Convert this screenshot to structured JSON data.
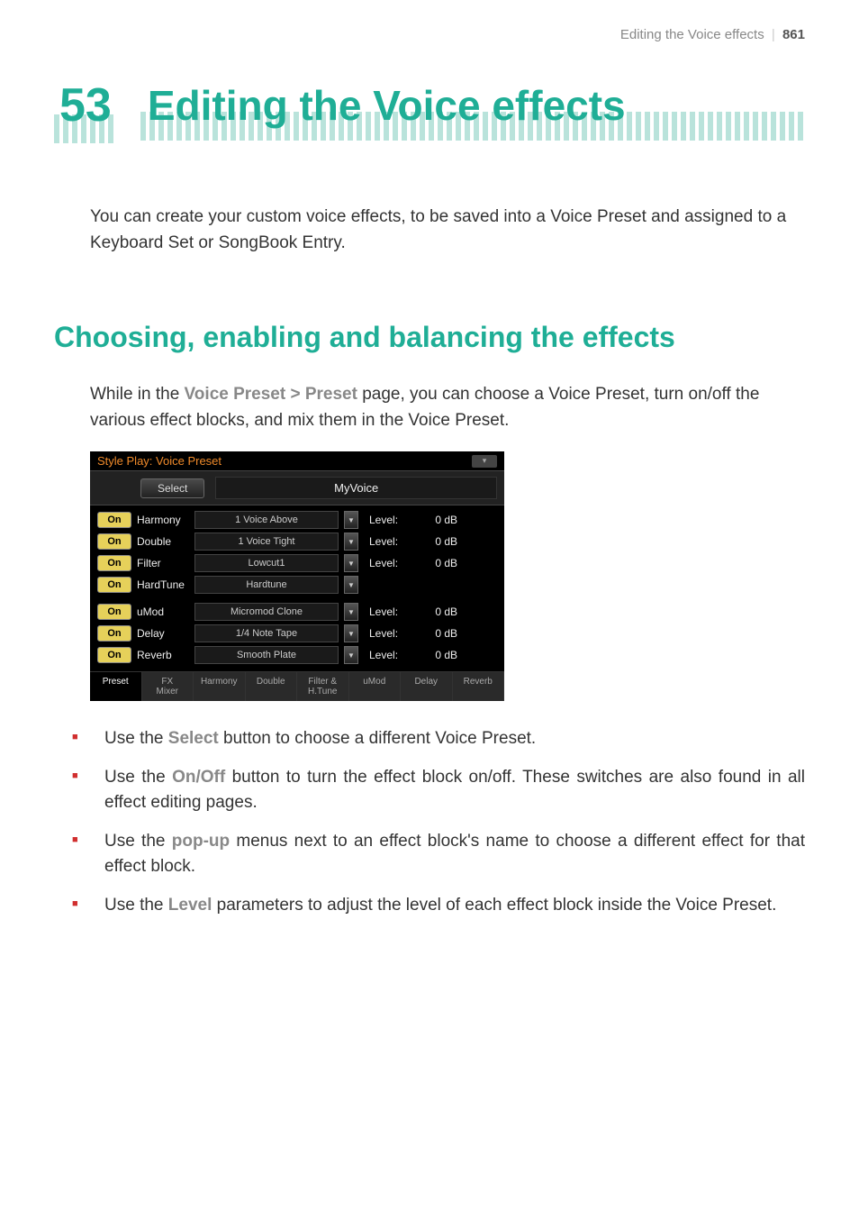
{
  "header": {
    "section": "Editing the Voice effects",
    "page_number": "861"
  },
  "chapter": {
    "number": "53",
    "title": "Editing the Voice effects"
  },
  "intro": "You can create your custom voice effects, to be saved into a Voice Preset and assigned to a Keyboard Set or SongBook Entry.",
  "section_title": "Choosing, enabling and balancing the effects",
  "para_pre": "While in the ",
  "para_ref": "Voice Preset > Preset",
  "para_post": " page, you can choose a Voice Preset, turn on/off the various effect blocks, and mix them in the Voice Preset.",
  "panel": {
    "titlebar": "Style Play: Voice Preset",
    "select_btn": "Select",
    "preset_name": "MyVoice",
    "rows": [
      {
        "on": "On",
        "label": "Harmony",
        "effect": "1 Voice Above",
        "level_label": "Level:",
        "level": "0 dB"
      },
      {
        "on": "On",
        "label": "Double",
        "effect": "1 Voice Tight",
        "level_label": "Level:",
        "level": "0 dB"
      },
      {
        "on": "On",
        "label": "Filter",
        "effect": "Lowcut1",
        "level_label": "Level:",
        "level": "0 dB"
      },
      {
        "on": "On",
        "label": "HardTune",
        "effect": "Hardtune",
        "level_label": "",
        "level": ""
      },
      {
        "on": "On",
        "label": "uMod",
        "effect": "Micromod Clone",
        "level_label": "Level:",
        "level": "0 dB"
      },
      {
        "on": "On",
        "label": "Delay",
        "effect": "1/4 Note Tape",
        "level_label": "Level:",
        "level": "0 dB"
      },
      {
        "on": "On",
        "label": "Reverb",
        "effect": "Smooth Plate",
        "level_label": "Level:",
        "level": "0 dB"
      }
    ],
    "tabs": [
      "Preset",
      "FX\nMixer",
      "Harmony",
      "Double",
      "Filter &\nH.Tune",
      "uMod",
      "Delay",
      "Reverb"
    ]
  },
  "bullets": [
    {
      "pre": "Use the ",
      "ref": "Select",
      "post": " button to choose a different Voice Preset."
    },
    {
      "pre": "Use the ",
      "ref": "On/Off",
      "post": " button to turn the effect block on/off. These switches are also found in all effect editing pages."
    },
    {
      "pre": "Use the ",
      "ref": "pop-up",
      "post": " menus next to an effect block's name to choose a different effect for that effect block."
    },
    {
      "pre": "Use the ",
      "ref": "Level",
      "post": " parameters to adjust the level of each effect block inside the Voice Preset."
    }
  ],
  "colors": {
    "accent": "#1fae96",
    "accent_light": "#b9e3db",
    "bullet": "#d12f2f",
    "orange": "#f08a2a",
    "yellow_btn": "#e6d15a"
  }
}
